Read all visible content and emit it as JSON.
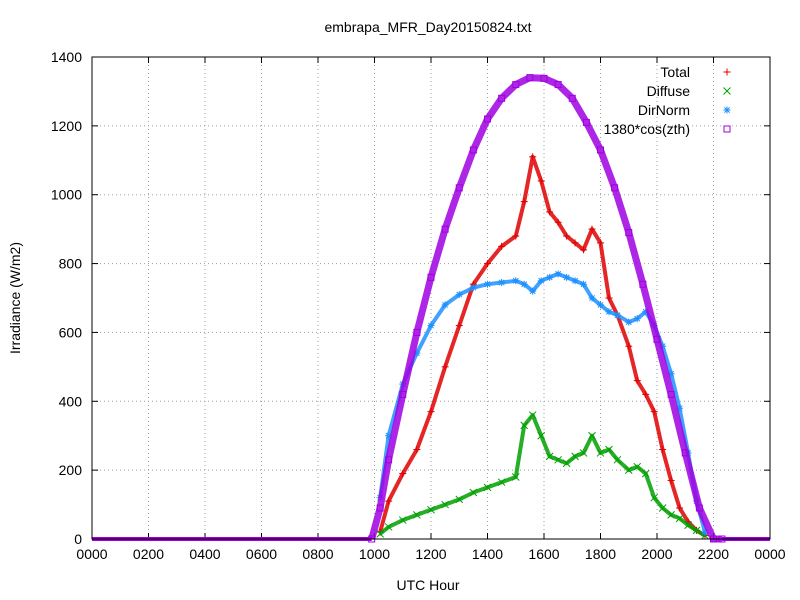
{
  "chart_data": {
    "type": "scatter",
    "title": "embrapa_MFR_Day20150824.txt",
    "xlabel": "UTC Hour",
    "ylabel": "Irradiance (W/m2)",
    "xlim": [
      0,
      24
    ],
    "ylim": [
      0,
      1400
    ],
    "x_ticks": [
      0,
      2,
      4,
      6,
      8,
      10,
      12,
      14,
      16,
      18,
      20,
      22,
      24
    ],
    "x_tick_labels": [
      "0000",
      "0200",
      "0400",
      "0600",
      "0800",
      "1000",
      "1200",
      "1400",
      "1600",
      "1800",
      "2000",
      "2200",
      "0000"
    ],
    "y_ticks": [
      0,
      200,
      400,
      600,
      800,
      1000,
      1200,
      1400
    ],
    "y_tick_labels": [
      "0",
      "200",
      "400",
      "600",
      "800",
      "1000",
      "1200",
      "1400"
    ],
    "grid": true,
    "legend_position": "top-right",
    "series": [
      {
        "name": "Total",
        "color": "#e00000",
        "marker": "plus",
        "x": [
          10.2,
          10.5,
          11.0,
          11.5,
          12.0,
          12.5,
          13.0,
          13.5,
          14.0,
          14.5,
          15.0,
          15.3,
          15.6,
          15.9,
          16.2,
          16.5,
          16.8,
          17.1,
          17.4,
          17.7,
          18.0,
          18.3,
          18.6,
          19.0,
          19.3,
          19.6,
          19.9,
          20.2,
          20.5,
          20.8,
          21.1,
          21.4,
          21.7
        ],
        "y": [
          20,
          110,
          190,
          260,
          370,
          500,
          620,
          740,
          800,
          850,
          880,
          980,
          1110,
          1040,
          950,
          920,
          880,
          860,
          840,
          900,
          860,
          700,
          650,
          560,
          460,
          420,
          370,
          260,
          170,
          90,
          50,
          25,
          10
        ]
      },
      {
        "name": "Diffuse",
        "color": "#00a000",
        "marker": "cross",
        "x": [
          10.2,
          10.5,
          11.0,
          11.5,
          12.0,
          12.5,
          13.0,
          13.5,
          14.0,
          14.5,
          15.0,
          15.3,
          15.6,
          15.9,
          16.2,
          16.5,
          16.8,
          17.1,
          17.4,
          17.7,
          18.0,
          18.3,
          18.6,
          19.0,
          19.3,
          19.6,
          19.9,
          20.2,
          20.5,
          20.8,
          21.1,
          21.4,
          21.7
        ],
        "y": [
          15,
          35,
          55,
          70,
          85,
          100,
          115,
          135,
          150,
          165,
          180,
          330,
          360,
          300,
          240,
          230,
          220,
          240,
          250,
          300,
          250,
          260,
          230,
          200,
          210,
          190,
          120,
          90,
          70,
          60,
          40,
          25,
          10
        ]
      },
      {
        "name": "DirNorm",
        "color": "#1e90ff",
        "marker": "star",
        "x": [
          10.2,
          10.5,
          11.0,
          11.5,
          12.0,
          12.5,
          13.0,
          13.5,
          14.0,
          14.5,
          15.0,
          15.3,
          15.6,
          15.9,
          16.2,
          16.5,
          16.8,
          17.1,
          17.4,
          17.7,
          18.0,
          18.3,
          18.6,
          19.0,
          19.3,
          19.6,
          19.9,
          20.2,
          20.5,
          20.8,
          21.1,
          21.4,
          21.7
        ],
        "y": [
          120,
          300,
          450,
          540,
          620,
          680,
          710,
          730,
          740,
          745,
          750,
          740,
          720,
          750,
          760,
          770,
          760,
          750,
          740,
          700,
          680,
          660,
          650,
          630,
          640,
          660,
          620,
          560,
          480,
          380,
          250,
          110,
          20
        ]
      },
      {
        "name": "1380*cos(zth)",
        "color": "#a000e0",
        "marker": "square",
        "x": [
          9.9,
          10.2,
          10.5,
          11.0,
          11.5,
          12.0,
          12.5,
          13.0,
          13.5,
          14.0,
          14.5,
          15.0,
          15.5,
          16.0,
          16.5,
          17.0,
          17.5,
          18.0,
          18.5,
          19.0,
          19.5,
          20.0,
          20.5,
          21.0,
          21.5,
          22.0,
          22.3
        ],
        "y": [
          0,
          90,
          230,
          420,
          600,
          760,
          900,
          1020,
          1130,
          1220,
          1280,
          1320,
          1340,
          1338,
          1320,
          1280,
          1210,
          1130,
          1020,
          890,
          740,
          580,
          420,
          250,
          90,
          0,
          0
        ]
      }
    ]
  }
}
